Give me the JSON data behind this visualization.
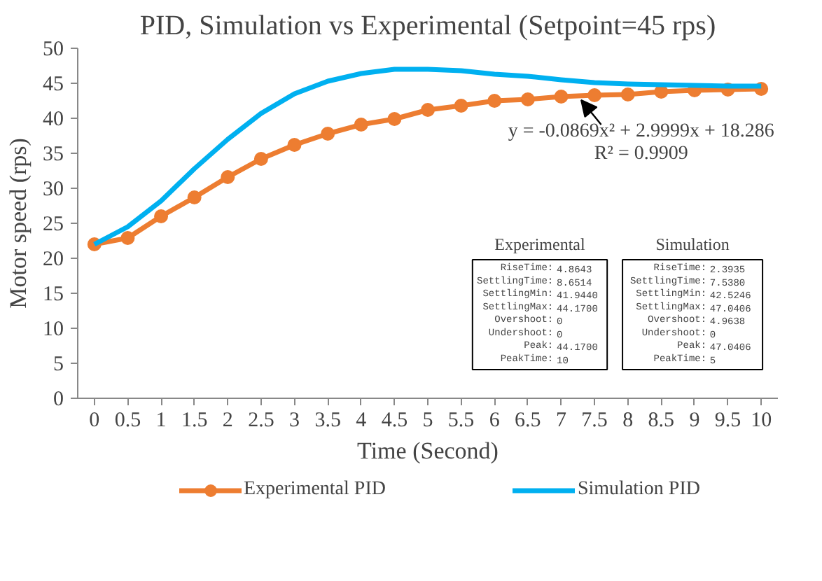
{
  "chart_data": {
    "type": "line",
    "title": "PID, Simulation vs Experimental (Setpoint=45 rps)",
    "xlabel": "Time (Second)",
    "ylabel": "Motor speed (rps)",
    "x": [
      0,
      0.5,
      1,
      1.5,
      2,
      2.5,
      3,
      3.5,
      4,
      4.5,
      5,
      5.5,
      6,
      6.5,
      7,
      7.5,
      8,
      8.5,
      9,
      9.5,
      10
    ],
    "series": [
      {
        "name": "Experimental PID",
        "color": "#ed7d31",
        "marker": "circle",
        "values": [
          22.0,
          22.9,
          26.0,
          28.7,
          31.6,
          34.2,
          36.2,
          37.8,
          39.1,
          39.9,
          41.2,
          41.8,
          42.5,
          42.7,
          43.1,
          43.3,
          43.4,
          43.8,
          44.0,
          44.1,
          44.2
        ]
      },
      {
        "name": "Simulation PID",
        "color": "#00b0f0",
        "marker": "none",
        "values": [
          22.0,
          24.5,
          28.2,
          32.8,
          37.0,
          40.7,
          43.5,
          45.3,
          46.4,
          47.0,
          47.0,
          46.8,
          46.3,
          46.0,
          45.5,
          45.1,
          44.9,
          44.8,
          44.7,
          44.6,
          44.6
        ]
      }
    ],
    "xlim": [
      -0.25,
      10.25
    ],
    "ylim": [
      0,
      50
    ],
    "xticks": [
      0,
      0.5,
      1,
      1.5,
      2,
      2.5,
      3,
      3.5,
      4,
      4.5,
      5,
      5.5,
      6,
      6.5,
      7,
      7.5,
      8,
      8.5,
      9,
      9.5,
      10
    ],
    "yticks": [
      0,
      5,
      10,
      15,
      20,
      25,
      30,
      35,
      40,
      45,
      50
    ],
    "grid": false,
    "legend": "bottom",
    "line_style": "solid",
    "annotations": [
      {
        "text": "y = -0.0869x² + 2.9999x + 18.286\nR² = 0.9909",
        "x": 7.3,
        "y": 42.6
      },
      "Experimental",
      "RiseTime: 4.8643\nSettlingTime: 8.6514\nSettlingMin: 41.9440\nSettlingMax: 44.1700\nOvershoot: 0\nUndershoot: 0\nPeak: 44.1700\nPeakTime: 10",
      "Simulation",
      "RiseTime: 2.3935\nSettlingTime: 7.5380\nSettlingMin: 42.5246\nSettlingMax: 47.0406\nOvershoot: 4.9638\nUndershoot: 0\nPeak: 47.0406\nPeakTime: 5"
    ]
  }
}
